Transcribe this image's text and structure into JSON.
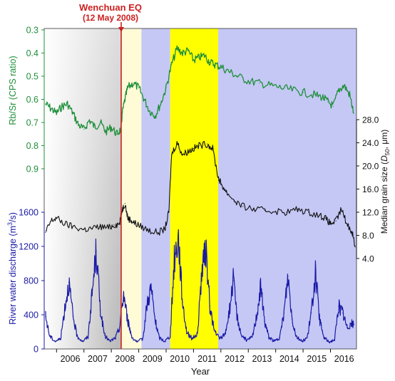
{
  "chart_data": {
    "type": "line",
    "annotation": {
      "title": "Wenchuan EQ",
      "date": "(12 May 2008)",
      "x": 2008.36,
      "color": "#cc1f1f"
    },
    "xlabel": "Year",
    "x_ticks": [
      "2006",
      "2007",
      "2008",
      "2009",
      "2010",
      "2011",
      "2012",
      "2013",
      "2014",
      "2015",
      "2016"
    ],
    "xlim": [
      2005.55,
      2016.95
    ],
    "shaded_periods": [
      {
        "from": 2005.55,
        "to": 2008.36,
        "color": "gray-gradient"
      },
      {
        "from": 2008.36,
        "to": 2009.1,
        "color": "#fffbd6"
      },
      {
        "from": 2009.1,
        "to": 2010.15,
        "color": "#c5c8f5"
      },
      {
        "from": 2010.15,
        "to": 2011.9,
        "color": "#ffff00"
      },
      {
        "from": 2011.9,
        "to": 2016.95,
        "color": "#c5c8f5"
      }
    ],
    "series": [
      {
        "name": "Rb/Sr (CPS ratio)",
        "axis_label": "Rb/Sr (CPS ratio)",
        "color": "#1f8f3a",
        "ylim": [
          0.9,
          0.3
        ],
        "y_ticks": [
          "0.3",
          "0.4",
          "0.5",
          "0.6",
          "0.7",
          "0.8",
          "0.9"
        ],
        "x": [
          2005.6,
          2005.8,
          2006.0,
          2006.2,
          2006.4,
          2006.6,
          2006.8,
          2007.0,
          2007.2,
          2007.4,
          2007.6,
          2007.8,
          2008.0,
          2008.2,
          2008.35,
          2008.4,
          2008.5,
          2008.6,
          2008.8,
          2009.0,
          2009.2,
          2009.4,
          2009.6,
          2009.8,
          2010.0,
          2010.2,
          2010.4,
          2010.6,
          2010.8,
          2011.0,
          2011.2,
          2011.4,
          2011.6,
          2011.8,
          2012.0,
          2012.3,
          2012.6,
          2013.0,
          2013.4,
          2013.8,
          2014.2,
          2014.6,
          2015.0,
          2015.4,
          2015.7,
          2015.9,
          2016.1,
          2016.3,
          2016.5,
          2016.7,
          2016.85
        ],
        "values": [
          0.62,
          0.64,
          0.66,
          0.63,
          0.62,
          0.66,
          0.71,
          0.73,
          0.69,
          0.72,
          0.7,
          0.74,
          0.72,
          0.75,
          0.73,
          0.66,
          0.6,
          0.55,
          0.53,
          0.55,
          0.6,
          0.65,
          0.67,
          0.62,
          0.55,
          0.45,
          0.38,
          0.4,
          0.39,
          0.43,
          0.42,
          0.41,
          0.44,
          0.45,
          0.46,
          0.48,
          0.5,
          0.52,
          0.53,
          0.54,
          0.55,
          0.56,
          0.57,
          0.58,
          0.59,
          0.61,
          0.63,
          0.56,
          0.54,
          0.58,
          0.66
        ]
      },
      {
        "name": "Median grain size",
        "axis_label": "Median grain size (D50, μm)",
        "color": "#111111",
        "ylim": [
          4.0,
          28.0
        ],
        "y_ticks": [
          "4.0",
          "8.0",
          "12.0",
          "16.0",
          "20.0",
          "24.0",
          "28.0"
        ],
        "x": [
          2005.6,
          2005.8,
          2006.0,
          2006.3,
          2006.6,
          2007.0,
          2007.3,
          2007.6,
          2007.9,
          2008.1,
          2008.3,
          2008.4,
          2008.5,
          2008.6,
          2008.75,
          2008.9,
          2009.1,
          2009.4,
          2009.7,
          2009.95,
          2010.1,
          2010.2,
          2010.4,
          2010.6,
          2010.8,
          2011.0,
          2011.2,
          2011.5,
          2011.7,
          2011.9,
          2012.0,
          2012.2,
          2012.5,
          2012.8,
          2013.2,
          2013.6,
          2014.0,
          2014.4,
          2014.8,
          2015.2,
          2015.6,
          2015.8,
          2016.0,
          2016.2,
          2016.4,
          2016.6,
          2016.8,
          2016.9
        ],
        "values": [
          8.5,
          10.5,
          11.0,
          10.0,
          9.5,
          9.0,
          9.2,
          9.5,
          9.3,
          9.8,
          10.0,
          12.5,
          13.5,
          11.0,
          10.5,
          10.0,
          9.5,
          8.8,
          8.5,
          9.0,
          12.0,
          22.0,
          24.0,
          22.0,
          22.5,
          23.0,
          23.5,
          23.8,
          23.0,
          18.0,
          17.0,
          15.5,
          14.0,
          13.0,
          12.5,
          12.3,
          12.2,
          12.0,
          12.5,
          12.0,
          11.5,
          11.0,
          10.0,
          10.5,
          12.5,
          10.0,
          8.5,
          6.0
        ]
      },
      {
        "name": "River water discharge",
        "axis_label": "River water discharge (m³/s)",
        "color": "#1a1aa6",
        "ylim": [
          0,
          1600
        ],
        "y_ticks": [
          "0",
          "400",
          "800",
          "1200",
          "1600"
        ],
        "x": [
          2005.6,
          2005.75,
          2005.95,
          2006.15,
          2006.3,
          2006.45,
          2006.6,
          2006.75,
          2006.95,
          2007.15,
          2007.3,
          2007.45,
          2007.6,
          2007.75,
          2007.95,
          2008.15,
          2008.3,
          2008.45,
          2008.6,
          2008.75,
          2008.95,
          2009.15,
          2009.3,
          2009.45,
          2009.6,
          2009.75,
          2009.95,
          2010.15,
          2010.3,
          2010.45,
          2010.6,
          2010.75,
          2010.95,
          2011.15,
          2011.3,
          2011.45,
          2011.6,
          2011.75,
          2011.95,
          2012.15,
          2012.3,
          2012.45,
          2012.6,
          2012.75,
          2012.95,
          2013.15,
          2013.3,
          2013.45,
          2013.6,
          2013.75,
          2013.95,
          2014.15,
          2014.3,
          2014.45,
          2014.6,
          2014.75,
          2014.95,
          2015.15,
          2015.3,
          2015.45,
          2015.6,
          2015.75,
          2015.95,
          2016.15,
          2016.3,
          2016.45,
          2016.6,
          2016.75,
          2016.85
        ],
        "values": [
          380,
          150,
          90,
          120,
          480,
          780,
          380,
          150,
          90,
          140,
          650,
          1150,
          460,
          160,
          90,
          130,
          250,
          650,
          330,
          140,
          80,
          120,
          520,
          720,
          330,
          130,
          90,
          150,
          1050,
          1300,
          550,
          200,
          120,
          180,
          900,
          1150,
          500,
          220,
          120,
          170,
          420,
          800,
          360,
          160,
          100,
          140,
          380,
          720,
          320,
          140,
          90,
          130,
          420,
          850,
          350,
          150,
          90,
          130,
          420,
          880,
          350,
          140,
          80,
          110,
          500,
          420,
          250,
          300,
          280
        ]
      }
    ]
  }
}
